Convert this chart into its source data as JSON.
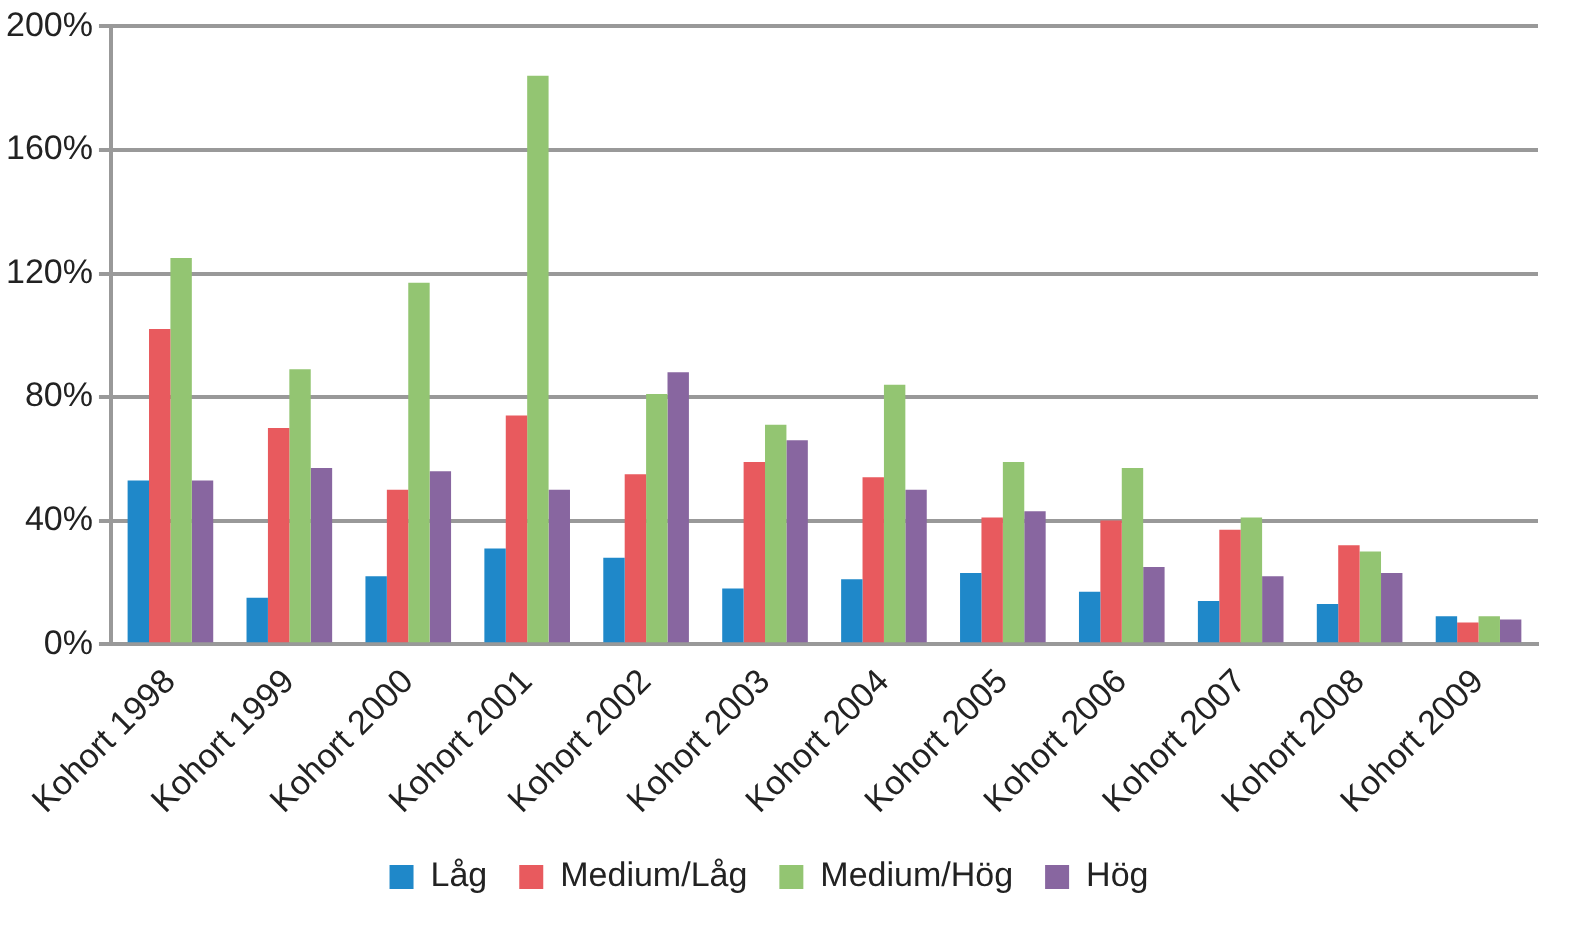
{
  "chart_data": {
    "type": "bar",
    "categories": [
      "Kohort 1998",
      "Kohort 1999",
      "Kohort 2000",
      "Kohort 2001",
      "Kohort 2002",
      "Kohort 2003",
      "Kohort 2004",
      "Kohort 2005",
      "Kohort 2006",
      "Kohort 2007",
      "Kohort 2008",
      "Kohort 2009"
    ],
    "series": [
      {
        "name": "Låg",
        "color": "#1f88c9",
        "values": [
          53,
          15,
          22,
          31,
          28,
          18,
          21,
          23,
          17,
          14,
          13,
          9
        ]
      },
      {
        "name": "Medium/Låg",
        "color": "#e85a5e",
        "values": [
          102,
          70,
          50,
          74,
          55,
          59,
          54,
          41,
          40,
          37,
          32,
          7
        ]
      },
      {
        "name": "Medium/Hög",
        "color": "#93c572",
        "values": [
          125,
          89,
          117,
          184,
          81,
          71,
          84,
          59,
          57,
          41,
          30,
          9
        ]
      },
      {
        "name": "Hög",
        "color": "#8866a0",
        "values": [
          53,
          57,
          56,
          50,
          88,
          66,
          50,
          43,
          25,
          22,
          23,
          8
        ]
      }
    ],
    "ylim": [
      0,
      200
    ],
    "yticks": [
      {
        "value": 0,
        "label": "0%"
      },
      {
        "value": 40,
        "label": "40%"
      },
      {
        "value": 80,
        "label": "80%"
      },
      {
        "value": 120,
        "label": "120%"
      },
      {
        "value": 160,
        "label": "160%"
      },
      {
        "value": 200,
        "label": "200%"
      }
    ],
    "grid": "y",
    "legend": "bottom"
  }
}
